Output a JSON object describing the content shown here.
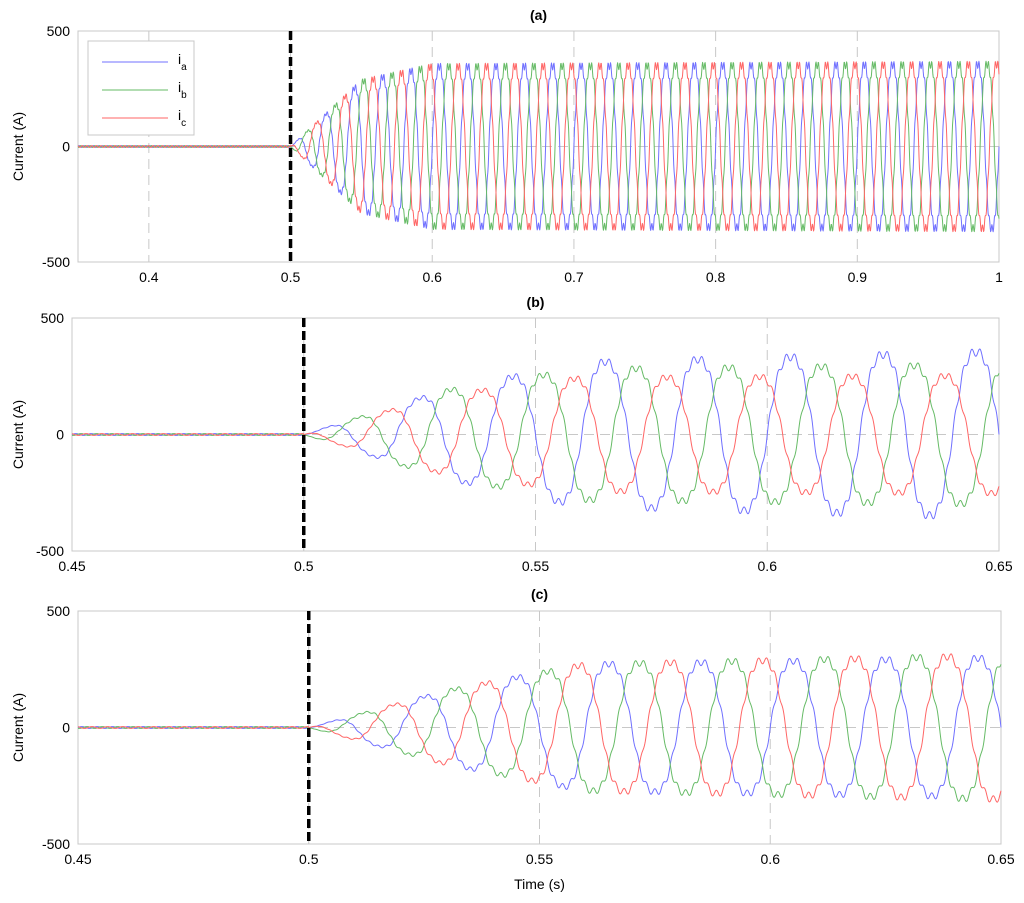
{
  "chart_data": [
    {
      "type": "line",
      "title": "(a)",
      "ylabel": "Current (A)",
      "xlabel": "",
      "xlim": [
        0.35,
        1.0
      ],
      "ylim": [
        -500,
        500
      ],
      "xticks": [
        0.4,
        0.5,
        0.6,
        0.7,
        0.8,
        0.9,
        1.0
      ],
      "xtick_labels": [
        "0.4",
        "0.5",
        "0.6",
        "0.7",
        "0.8",
        "0.9",
        "1"
      ],
      "yticks": [
        500,
        0,
        -500
      ],
      "ytick_labels": [
        "500",
        "0",
        "-500"
      ],
      "grid": true,
      "legend": "top-left",
      "event_time": 0.5,
      "frequency_hz": 50,
      "series": [
        {
          "name": "i",
          "subscript": "a",
          "color": "#7070ff",
          "phase_deg": 0,
          "amplitude": [
            {
              "t": 0.5,
              "amp": 0
            },
            {
              "t": 0.55,
              "amp": 300
            },
            {
              "t": 0.6,
              "amp": 370
            },
            {
              "t": 1.0,
              "amp": 380
            }
          ]
        },
        {
          "name": "i",
          "subscript": "b",
          "color": "#66bb66",
          "phase_deg": -120,
          "amplitude": [
            {
              "t": 0.5,
              "amp": 0
            },
            {
              "t": 0.55,
              "amp": 300
            },
            {
              "t": 0.6,
              "amp": 370
            },
            {
              "t": 1.0,
              "amp": 380
            }
          ]
        },
        {
          "name": "i",
          "subscript": "c",
          "color": "#ff6666",
          "phase_deg": 120,
          "amplitude": [
            {
              "t": 0.5,
              "amp": 0
            },
            {
              "t": 0.55,
              "amp": 300
            },
            {
              "t": 0.6,
              "amp": 370
            },
            {
              "t": 1.0,
              "amp": 380
            }
          ]
        }
      ]
    },
    {
      "type": "line",
      "title": "(b)",
      "ylabel": "Current (A)",
      "xlabel": "",
      "xlim": [
        0.45,
        0.65
      ],
      "ylim": [
        -500,
        500
      ],
      "xticks": [
        0.45,
        0.5,
        0.55,
        0.6,
        0.65
      ],
      "xtick_labels": [
        "0.45",
        "0.5",
        "0.55",
        "0.6",
        "0.65"
      ],
      "yticks": [
        500,
        0,
        -500
      ],
      "ytick_labels": [
        "500",
        "0",
        "-500"
      ],
      "grid": true,
      "event_time": 0.5,
      "frequency_hz": 50,
      "series": [
        {
          "name": "i",
          "subscript": "a",
          "color": "#7070ff",
          "phase_deg": 0,
          "amplitude": [
            {
              "t": 0.5,
              "amp": 0
            },
            {
              "t": 0.53,
              "amp": 200
            },
            {
              "t": 0.56,
              "amp": 330
            },
            {
              "t": 0.65,
              "amp": 380
            }
          ]
        },
        {
          "name": "i",
          "subscript": "b",
          "color": "#66bb66",
          "phase_deg": -120,
          "amplitude": [
            {
              "t": 0.5,
              "amp": 0
            },
            {
              "t": 0.53,
              "amp": 200
            },
            {
              "t": 0.56,
              "amp": 300
            },
            {
              "t": 0.65,
              "amp": 320
            }
          ]
        },
        {
          "name": "i",
          "subscript": "c",
          "color": "#ff6666",
          "phase_deg": 120,
          "amplitude": [
            {
              "t": 0.5,
              "amp": 0
            },
            {
              "t": 0.53,
              "amp": 180
            },
            {
              "t": 0.56,
              "amp": 260
            },
            {
              "t": 0.65,
              "amp": 270
            }
          ]
        }
      ]
    },
    {
      "type": "line",
      "title": "(c)",
      "ylabel": "Current (A)",
      "xlabel": "Time (s)",
      "xlim": [
        0.45,
        0.65
      ],
      "ylim": [
        -500,
        500
      ],
      "xticks": [
        0.45,
        0.5,
        0.55,
        0.6,
        0.65
      ],
      "xtick_labels": [
        "0.45",
        "0.5",
        "0.55",
        "0.6",
        "0.65"
      ],
      "yticks": [
        500,
        0,
        -500
      ],
      "ytick_labels": [
        "500",
        "0",
        "-500"
      ],
      "grid": true,
      "event_time": 0.5,
      "frequency_hz": 50,
      "series": [
        {
          "name": "i",
          "subscript": "a",
          "color": "#7070ff",
          "phase_deg": 0,
          "amplitude": [
            {
              "t": 0.5,
              "amp": 0
            },
            {
              "t": 0.53,
              "amp": 170
            },
            {
              "t": 0.56,
              "amp": 290
            },
            {
              "t": 0.65,
              "amp": 320
            }
          ]
        },
        {
          "name": "i",
          "subscript": "b",
          "color": "#66bb66",
          "phase_deg": -120,
          "amplitude": [
            {
              "t": 0.5,
              "amp": 0
            },
            {
              "t": 0.53,
              "amp": 170
            },
            {
              "t": 0.56,
              "amp": 290
            },
            {
              "t": 0.65,
              "amp": 330
            }
          ]
        },
        {
          "name": "i",
          "subscript": "c",
          "color": "#ff6666",
          "phase_deg": 120,
          "amplitude": [
            {
              "t": 0.5,
              "amp": 0
            },
            {
              "t": 0.53,
              "amp": 170
            },
            {
              "t": 0.56,
              "amp": 290
            },
            {
              "t": 0.65,
              "amp": 330
            }
          ]
        }
      ]
    }
  ]
}
